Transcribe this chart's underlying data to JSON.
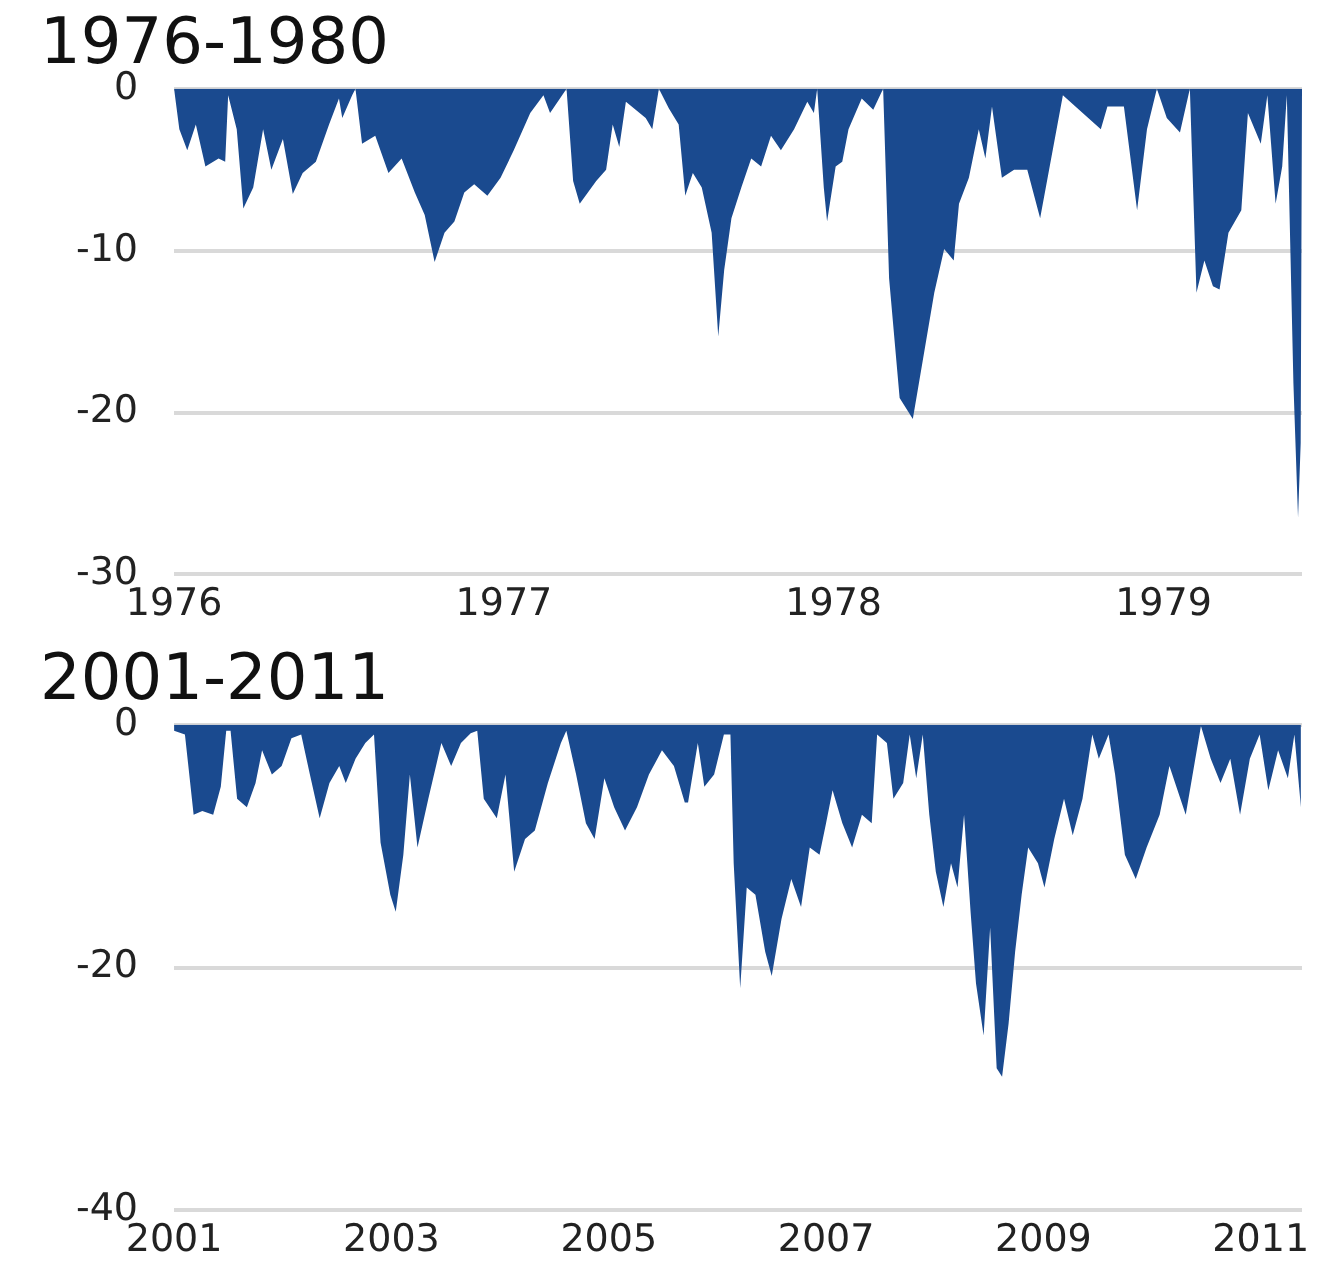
{
  "chart_data": [
    {
      "type": "area",
      "title": "1976-1980",
      "xlim": [
        1976,
        1979.42
      ],
      "xticks": [
        1976,
        1977,
        1978,
        1979
      ],
      "ylim": [
        -30,
        0
      ],
      "yticks": [
        -30,
        -20,
        -10,
        0
      ],
      "grid": "y",
      "x": [
        1976.0,
        1976.016,
        1976.04,
        1976.066,
        1976.095,
        1976.135,
        1976.155,
        1976.164,
        1976.19,
        1976.21,
        1976.24,
        1976.27,
        1976.295,
        1976.33,
        1976.36,
        1976.39,
        1976.43,
        1976.47,
        1976.5,
        1976.51,
        1976.54,
        1976.55,
        1976.57,
        1976.61,
        1976.65,
        1976.69,
        1976.73,
        1976.76,
        1976.79,
        1976.82,
        1976.85,
        1976.88,
        1976.91,
        1976.95,
        1976.99,
        1977.03,
        1977.08,
        1977.12,
        1977.14,
        1977.17,
        1977.19,
        1977.21,
        1977.23,
        1977.28,
        1977.31,
        1977.33,
        1977.35,
        1977.37,
        1977.43,
        1977.45,
        1977.47,
        1977.5,
        1977.53,
        1977.55,
        1977.573,
        1977.6,
        1977.63,
        1977.65,
        1977.668,
        1977.69,
        1977.72,
        1977.75,
        1977.78,
        1977.81,
        1977.84,
        1977.88,
        1977.92,
        1977.94,
        1977.95,
        1977.97,
        1977.98,
        1978.006,
        1978.026,
        1978.045,
        1978.085,
        1978.12,
        1978.15,
        1978.168,
        1978.2,
        1978.24,
        1978.27,
        1978.305,
        1978.335,
        1978.364,
        1978.38,
        1978.41,
        1978.44,
        1978.46,
        1978.48,
        1978.51,
        1978.547,
        1978.587,
        1978.626,
        1978.655,
        1978.695,
        1978.744,
        1978.81,
        1978.83,
        1978.88,
        1978.92,
        1978.95,
        1978.98,
        1979.01,
        1979.05,
        1979.08,
        1979.1,
        1979.124,
        1979.15,
        1979.17,
        1979.197,
        1979.236,
        1979.256,
        1979.295,
        1979.315,
        1979.34,
        1979.36,
        1979.374,
        1979.394,
        1979.408,
        1979.416,
        1979.42
      ],
      "series": [
        {
          "color": "#1a4a8f",
          "values": [
            0,
            -2.5,
            -3.8,
            -2.2,
            -4.8,
            -4.3,
            -4.5,
            -0.4,
            -2.5,
            -7.4,
            -6.1,
            -2.5,
            -5,
            -3.1,
            -6.5,
            -5.2,
            -4.5,
            -2.2,
            -0.6,
            -1.8,
            -0.4,
            0,
            -3.4,
            -2.9,
            -5.2,
            -4.3,
            -6.4,
            -7.8,
            -10.7,
            -8.9,
            -8.2,
            -6.4,
            -5.9,
            -6.6,
            -5.5,
            -3.8,
            -1.5,
            -0.4,
            -1.5,
            -0.6,
            0,
            -5.7,
            -7.1,
            -5.7,
            -5,
            -2.2,
            -3.6,
            -0.8,
            -1.8,
            -2.5,
            0,
            -1.2,
            -2.2,
            -6.6,
            -5.2,
            -6.1,
            -8.9,
            -15.3,
            -11.2,
            -8,
            -6.1,
            -4.3,
            -4.8,
            -2.9,
            -3.8,
            -2.5,
            -0.8,
            -1.5,
            0,
            -6.1,
            -8.2,
            -4.8,
            -4.5,
            -2.5,
            -0.6,
            -1.3,
            0,
            -11.7,
            -19.1,
            -20.4,
            -16.8,
            -12.6,
            -9.9,
            -10.6,
            -7.1,
            -5.5,
            -2.5,
            -4.3,
            -1.1,
            -5.5,
            -5,
            -5,
            -8,
            -4.8,
            -0.4,
            -1.3,
            -2.5,
            -1.1,
            -1.1,
            -7.5,
            -2.5,
            0,
            -1.8,
            -2.7,
            0,
            -12.6,
            -10.6,
            -12.2,
            -12.4,
            -8.9,
            -7.5,
            -1.5,
            -3.4,
            -0.4,
            -7.1,
            -4.8,
            -0.4,
            -18.2,
            -26.5,
            -21.9,
            0
          ]
        }
      ]
    },
    {
      "type": "area",
      "title": "2001-2011",
      "xlim": [
        2001,
        2011.38
      ],
      "xticks": [
        2001,
        2003,
        2005,
        2007,
        2009,
        2011
      ],
      "ylim": [
        -40,
        0
      ],
      "yticks": [
        -40,
        -20,
        0
      ],
      "grid": "y",
      "x": [
        2001.0,
        2001.1,
        2001.18,
        2001.26,
        2001.36,
        2001.43,
        2001.48,
        2001.52,
        2001.58,
        2001.67,
        2001.75,
        2001.81,
        2001.9,
        2001.99,
        2002.08,
        2002.17,
        2002.25,
        2002.34,
        2002.43,
        2002.52,
        2002.58,
        2002.67,
        2002.76,
        2002.84,
        2002.9,
        2002.99,
        2003.04,
        2003.11,
        2003.17,
        2003.24,
        2003.34,
        2003.46,
        2003.55,
        2003.64,
        2003.73,
        2003.79,
        2003.85,
        2003.97,
        2004.05,
        2004.13,
        2004.23,
        2004.32,
        2004.44,
        2004.56,
        2004.61,
        2004.7,
        2004.79,
        2004.87,
        2004.96,
        2005.05,
        2005.15,
        2005.26,
        2005.37,
        2005.49,
        2005.6,
        2005.7,
        2005.73,
        2005.82,
        2005.88,
        2005.97,
        2006.06,
        2006.12,
        2006.15,
        2006.21,
        2006.27,
        2006.35,
        2006.44,
        2006.5,
        2006.59,
        2006.68,
        2006.77,
        2006.85,
        2006.94,
        2007.0,
        2007.06,
        2007.15,
        2007.24,
        2007.33,
        2007.42,
        2007.47,
        2007.56,
        2007.62,
        2007.71,
        2007.77,
        2007.83,
        2007.89,
        2007.95,
        2008.01,
        2008.08,
        2008.15,
        2008.21,
        2008.27,
        2008.33,
        2008.38,
        2008.45,
        2008.51,
        2008.57,
        2008.62,
        2008.68,
        2008.74,
        2008.8,
        2008.86,
        2008.95,
        2009.01,
        2009.1,
        2009.19,
        2009.27,
        2009.36,
        2009.45,
        2009.51,
        2009.6,
        2009.66,
        2009.75,
        2009.85,
        2009.95,
        2010.07,
        2010.16,
        2010.31,
        2010.45,
        2010.54,
        2010.63,
        2010.72,
        2010.81,
        2010.9,
        2010.99,
        2011.07,
        2011.16,
        2011.25,
        2011.31,
        2011.37
      ],
      "series": [
        {
          "color": "#1a4a8f",
          "values": [
            -0.5,
            -0.8,
            -7.4,
            -7.1,
            -7.4,
            -5.1,
            -0.5,
            -0.5,
            -6.1,
            -6.8,
            -4.8,
            -2.1,
            -4.1,
            -3.4,
            -1.1,
            -0.8,
            -4.1,
            -7.7,
            -4.8,
            -3.4,
            -4.8,
            -2.8,
            -1.5,
            -0.8,
            -9.7,
            -14,
            -15.4,
            -10.7,
            -4.1,
            -10.1,
            -6.1,
            -1.5,
            -3.4,
            -1.5,
            -0.7,
            -0.5,
            -6.1,
            -7.7,
            -4.1,
            -12.1,
            -9.4,
            -8.7,
            -4.8,
            -1.5,
            -0.5,
            -4.1,
            -8.1,
            -9.4,
            -4.4,
            -6.8,
            -8.7,
            -6.8,
            -4.1,
            -2.1,
            -3.4,
            -6.4,
            -6.4,
            -1.5,
            -5.1,
            -4.1,
            -0.8,
            -0.8,
            -11.4,
            -21.7,
            -13.4,
            -14,
            -18.7,
            -20.7,
            -16,
            -12.7,
            -15,
            -10.1,
            -10.7,
            -8.1,
            -5.4,
            -8.1,
            -10.1,
            -7.4,
            -8.1,
            -0.8,
            -1.5,
            -6.1,
            -4.8,
            -0.8,
            -4.4,
            -0.8,
            -7.4,
            -12.1,
            -15,
            -11.4,
            -13.4,
            -7.4,
            -15.4,
            -21.3,
            -25.6,
            -16.7,
            -28.3,
            -29,
            -24.6,
            -18.7,
            -14,
            -10.1,
            -11.4,
            -13.4,
            -9.4,
            -6.1,
            -9.1,
            -6.1,
            -0.8,
            -2.8,
            -0.8,
            -4.1,
            -10.7,
            -12.7,
            -10.1,
            -7.4,
            -3.4,
            -7.4,
            -0.1,
            -2.8,
            -4.8,
            -2.8,
            -7.4,
            -2.8,
            -0.8,
            -5.4,
            -2.1,
            -4.4,
            -0.8,
            -6.8
          ]
        }
      ]
    }
  ]
}
